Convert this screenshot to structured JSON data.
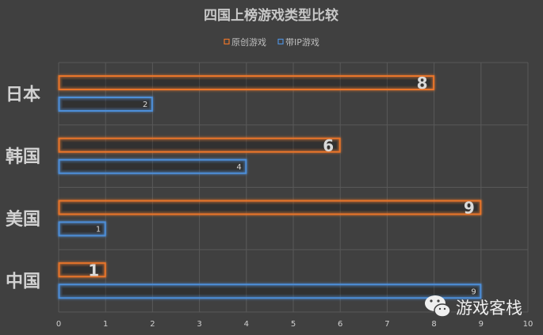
{
  "chart_data": {
    "type": "bar",
    "orientation": "horizontal",
    "title": "四国上榜游戏类型比较",
    "categories": [
      "日本",
      "韩国",
      "美国",
      "中国"
    ],
    "series": [
      {
        "name": "原创游戏",
        "values": [
          8,
          6,
          9,
          1
        ],
        "color": "#e8742a"
      },
      {
        "name": "带IP游戏",
        "values": [
          2,
          4,
          1,
          9
        ],
        "color": "#4d8ed8"
      }
    ],
    "xlim": [
      0,
      10
    ],
    "xticks": [
      "0",
      "1",
      "2",
      "3",
      "4",
      "5",
      "6",
      "7",
      "8",
      "9",
      "10"
    ],
    "grid": true,
    "legend_position": "top"
  },
  "watermark": {
    "icon": "wechat-icon",
    "text": "游戏客栈"
  }
}
